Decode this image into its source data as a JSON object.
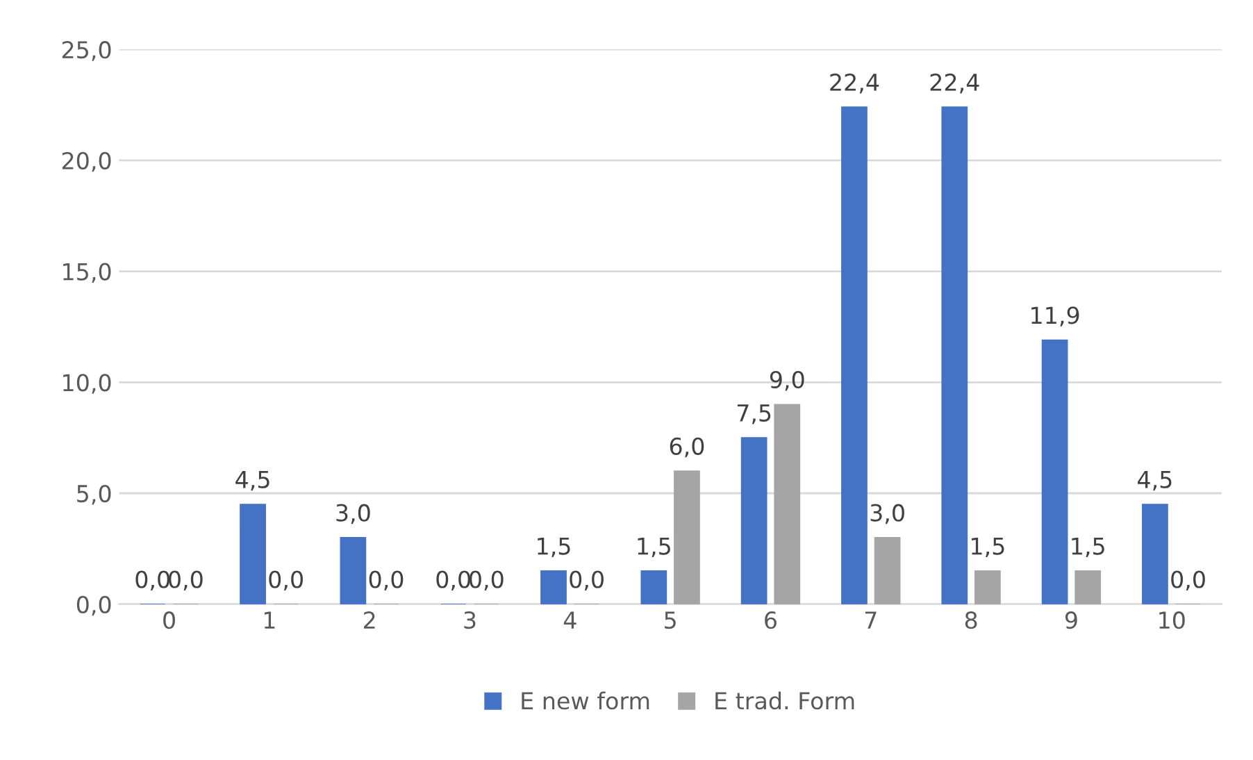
{
  "chart_data": {
    "type": "bar",
    "categories": [
      "0",
      "1",
      "2",
      "3",
      "4",
      "5",
      "6",
      "7",
      "8",
      "9",
      "10"
    ],
    "series": [
      {
        "name": "E new form",
        "color": "#4472c4",
        "values": [
          0.0,
          4.5,
          3.0,
          0.0,
          1.5,
          1.5,
          7.5,
          22.4,
          22.4,
          11.9,
          4.5
        ],
        "value_labels": [
          "0,0",
          "4,5",
          "3,0",
          "0,0",
          "1,5",
          "1,5",
          "7,5",
          "22,4",
          "22,4",
          "11,9",
          "4,5"
        ]
      },
      {
        "name": "E trad. Form",
        "color": "#a5a5a5",
        "values": [
          0.0,
          0.0,
          0.0,
          0.0,
          0.0,
          6.0,
          9.0,
          3.0,
          1.5,
          1.5,
          0.0
        ],
        "value_labels": [
          "0,0",
          "0,0",
          "0,0",
          "0,0",
          "0,0",
          "6,0",
          "9,0",
          "3,0",
          "1,5",
          "1,5",
          "0,0"
        ]
      }
    ],
    "ylim": [
      0,
      25
    ],
    "yticks": [
      {
        "value": 0,
        "label": "0,0"
      },
      {
        "value": 5,
        "label": "5,0"
      },
      {
        "value": 10,
        "label": "10,0"
      },
      {
        "value": 15,
        "label": "15,0"
      },
      {
        "value": 20,
        "label": "20,0"
      },
      {
        "value": 25,
        "label": "25,0"
      }
    ],
    "grid": "y",
    "legend": "bottom"
  }
}
